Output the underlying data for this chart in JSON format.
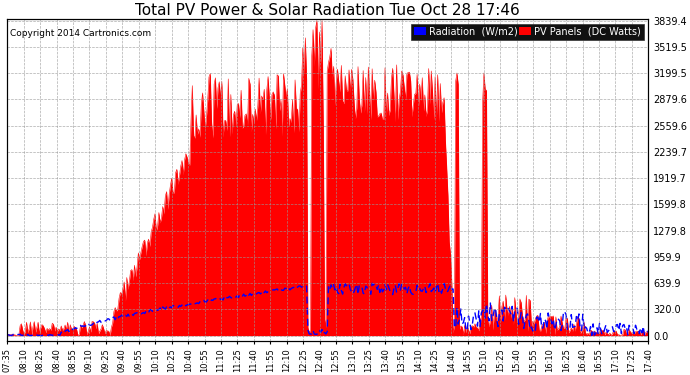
{
  "title": "Total PV Power & Solar Radiation Tue Oct 28 17:46",
  "copyright": "Copyright 2014 Cartronics.com",
  "yticks": [
    0.0,
    320.0,
    639.9,
    959.9,
    1279.8,
    1599.8,
    1919.7,
    2239.7,
    2559.6,
    2879.6,
    3199.5,
    3519.5,
    3839.4
  ],
  "ymax": 3839.4,
  "ymin": 0,
  "legend_labels": [
    "Radiation  (W/m2)",
    "PV Panels  (DC Watts)"
  ],
  "background_color": "#ffffff",
  "grid_color": "#999999",
  "title_fontsize": 11,
  "xtick_labels": [
    "07:35",
    "08:10",
    "08:25",
    "08:40",
    "08:55",
    "09:10",
    "09:25",
    "09:40",
    "09:55",
    "10:10",
    "10:25",
    "10:40",
    "10:55",
    "11:10",
    "11:25",
    "11:40",
    "11:55",
    "12:10",
    "12:25",
    "12:40",
    "12:55",
    "13:10",
    "13:25",
    "13:40",
    "13:55",
    "14:10",
    "14:25",
    "14:40",
    "14:55",
    "15:10",
    "15:25",
    "15:40",
    "15:55",
    "16:10",
    "16:25",
    "16:40",
    "16:55",
    "17:10",
    "17:25",
    "17:40"
  ]
}
